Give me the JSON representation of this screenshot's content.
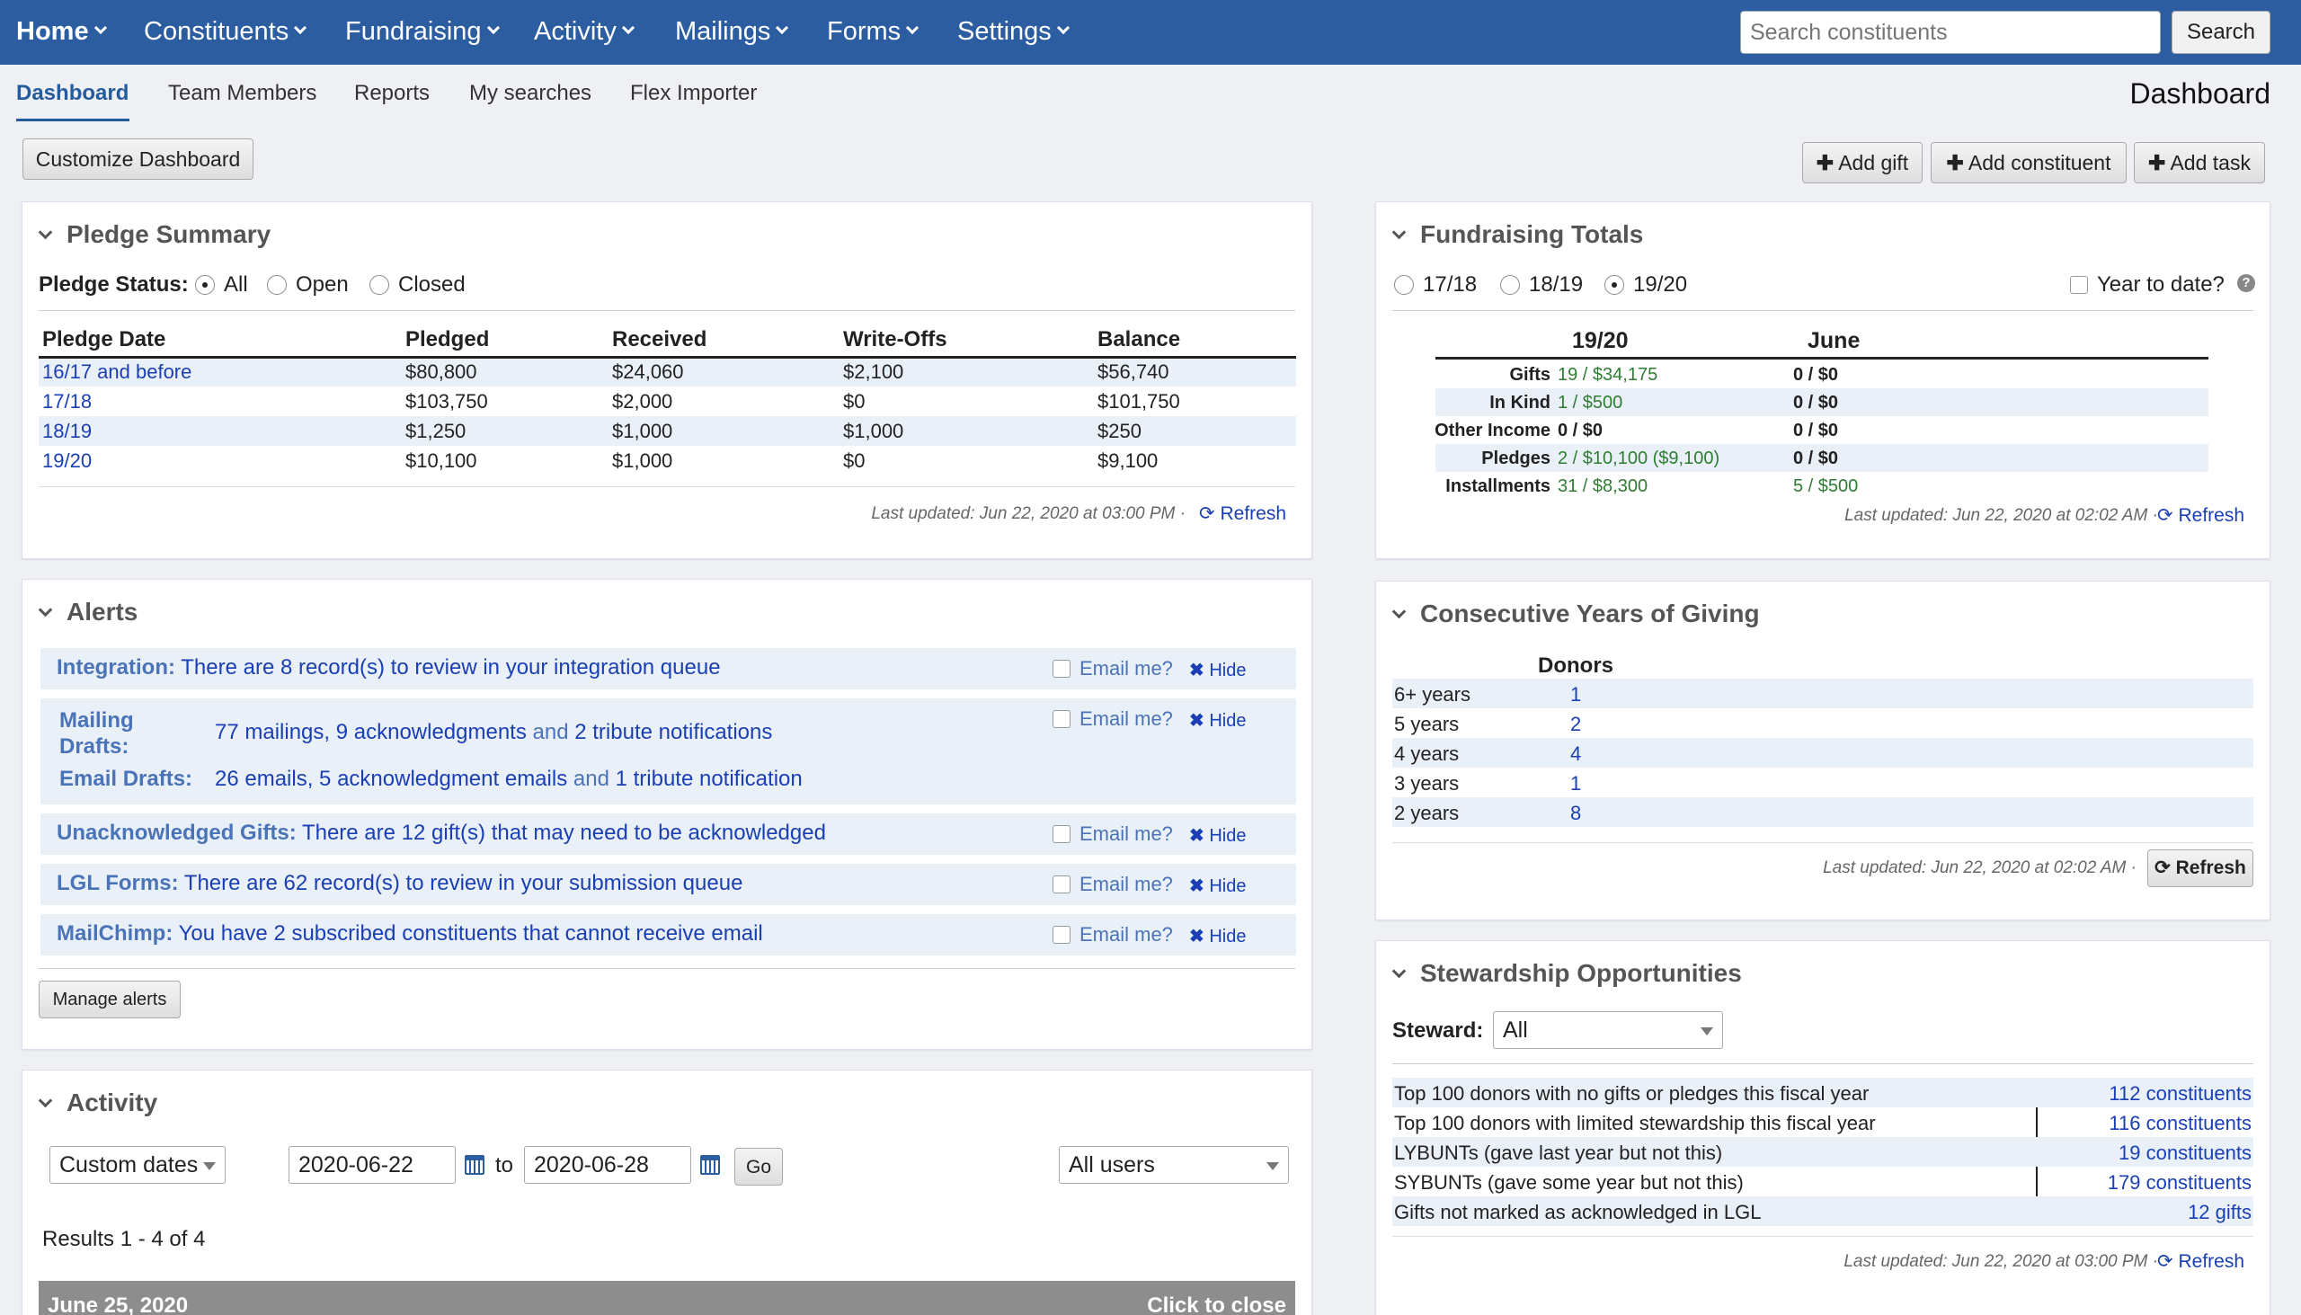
{
  "nav": {
    "home": "Home",
    "items": [
      "Constituents",
      "Fundraising",
      "Activity",
      "Mailings",
      "Forms",
      "Settings"
    ],
    "search_placeholder": "Search constituents",
    "search_button": "Search"
  },
  "tabs": [
    "Dashboard",
    "Team Members",
    "Reports",
    "My searches",
    "Flex Importer"
  ],
  "page_title": "Dashboard",
  "buttons": {
    "customize": "Customize Dashboard",
    "add_gift": "Add gift",
    "add_constituent": "Add constituent",
    "add_task": "Add task"
  },
  "pledge": {
    "title": "Pledge Summary",
    "status_label": "Pledge Status:",
    "status_options": [
      "All",
      "Open",
      "Closed"
    ],
    "selected": "All",
    "columns": [
      "Pledge Date",
      "Pledged",
      "Received",
      "Write-Offs",
      "Balance"
    ],
    "rows": [
      [
        "16/17 and before",
        "$80,800",
        "$24,060",
        "$2,100",
        "$56,740"
      ],
      [
        "17/18",
        "$103,750",
        "$2,000",
        "$0",
        "$101,750"
      ],
      [
        "18/19",
        "$1,250",
        "$1,000",
        "$1,000",
        "$250"
      ],
      [
        "19/20",
        "$10,100",
        "$1,000",
        "$0",
        "$9,100"
      ]
    ],
    "updated": "Last updated: Jun 22, 2020 at 03:00 PM",
    "refresh": "Refresh"
  },
  "alerts": {
    "title": "Alerts",
    "integration_label": "Integration:",
    "integration_text": "There are 8 record(s) to review in your integration queue",
    "mailing_label_1": "Mailing",
    "mailing_label_2": "Drafts:",
    "mailing_a": "77 mailings, 9 acknowledgments",
    "mailing_and": "and",
    "mailing_b": "2 tribute notifications",
    "email_label": "Email Drafts:",
    "email_a": "26 emails, 5 acknowledgment emails",
    "email_and": "and",
    "email_b": "1 tribute notification",
    "unack_label": "Unacknowledged Gifts:",
    "unack_text": "There are 12 gift(s) that may need to be acknowledged",
    "forms_label": "LGL Forms:",
    "forms_text": "There are 62 record(s) to review in your submission queue",
    "mailchimp_label": "MailChimp:",
    "mailchimp_text": "You have 2 subscribed constituents that cannot receive email",
    "email_me": "Email me?",
    "hide": "Hide",
    "manage": "Manage alerts"
  },
  "activity": {
    "title": "Activity",
    "range": "Custom dates",
    "from": "2020-06-22",
    "to_label": "to",
    "to": "2020-06-28",
    "go": "Go",
    "users": "All users",
    "results": "Results 1 - 4 of 4",
    "date_header": "June 25, 2020",
    "close": "Click to close"
  },
  "fundraising": {
    "title": "Fundraising Totals",
    "years": [
      "17/18",
      "18/19",
      "19/20"
    ],
    "selected": "19/20",
    "ytd": "Year to date?",
    "col1": "19/20",
    "col2": "June",
    "rows": [
      [
        "Gifts",
        "19 / $34,175",
        "0 / $0"
      ],
      [
        "In Kind",
        "1 / $500",
        "0 / $0"
      ],
      [
        "Other Income",
        "0 / $0",
        "0 / $0"
      ],
      [
        "Pledges",
        "2 / $10,100 ($9,100)",
        "0 / $0"
      ],
      [
        "Installments",
        "31 / $8,300",
        "5 / $500"
      ]
    ],
    "updated": "Last updated: Jun 22, 2020 at 02:02 AM",
    "refresh": "Refresh",
    "green_color": "#2e7d32"
  },
  "consecutive": {
    "title": "Consecutive Years of Giving",
    "header": "Donors",
    "rows": [
      [
        "6+ years",
        "1"
      ],
      [
        "5 years",
        "2"
      ],
      [
        "4 years",
        "4"
      ],
      [
        "3 years",
        "1"
      ],
      [
        "2 years",
        "8"
      ]
    ],
    "updated": "Last updated: Jun 22, 2020 at 02:02 AM",
    "refresh": "Refresh"
  },
  "stewardship": {
    "title": "Stewardship Opportunities",
    "steward_label": "Steward:",
    "steward_value": "All",
    "rows": [
      [
        "Top 100 donors with no gifts or pledges this fiscal year",
        "112 constituents"
      ],
      [
        "Top 100 donors with limited stewardship this fiscal year",
        "116 constituents"
      ],
      [
        "LYBUNTs (gave last year but not this)",
        "19 constituents"
      ],
      [
        "SYBUNTs (gave some year but not this)",
        "179 constituents"
      ],
      [
        "Gifts not marked as acknowledged in LGL",
        "12 gifts"
      ]
    ],
    "updated": "Last updated: Jun 22, 2020 at 03:00 PM",
    "refresh": "Refresh"
  },
  "colors": {
    "nav_bg": "#2b5da0",
    "link": "#1a3fb4",
    "stripe": "#eaf0f8"
  }
}
